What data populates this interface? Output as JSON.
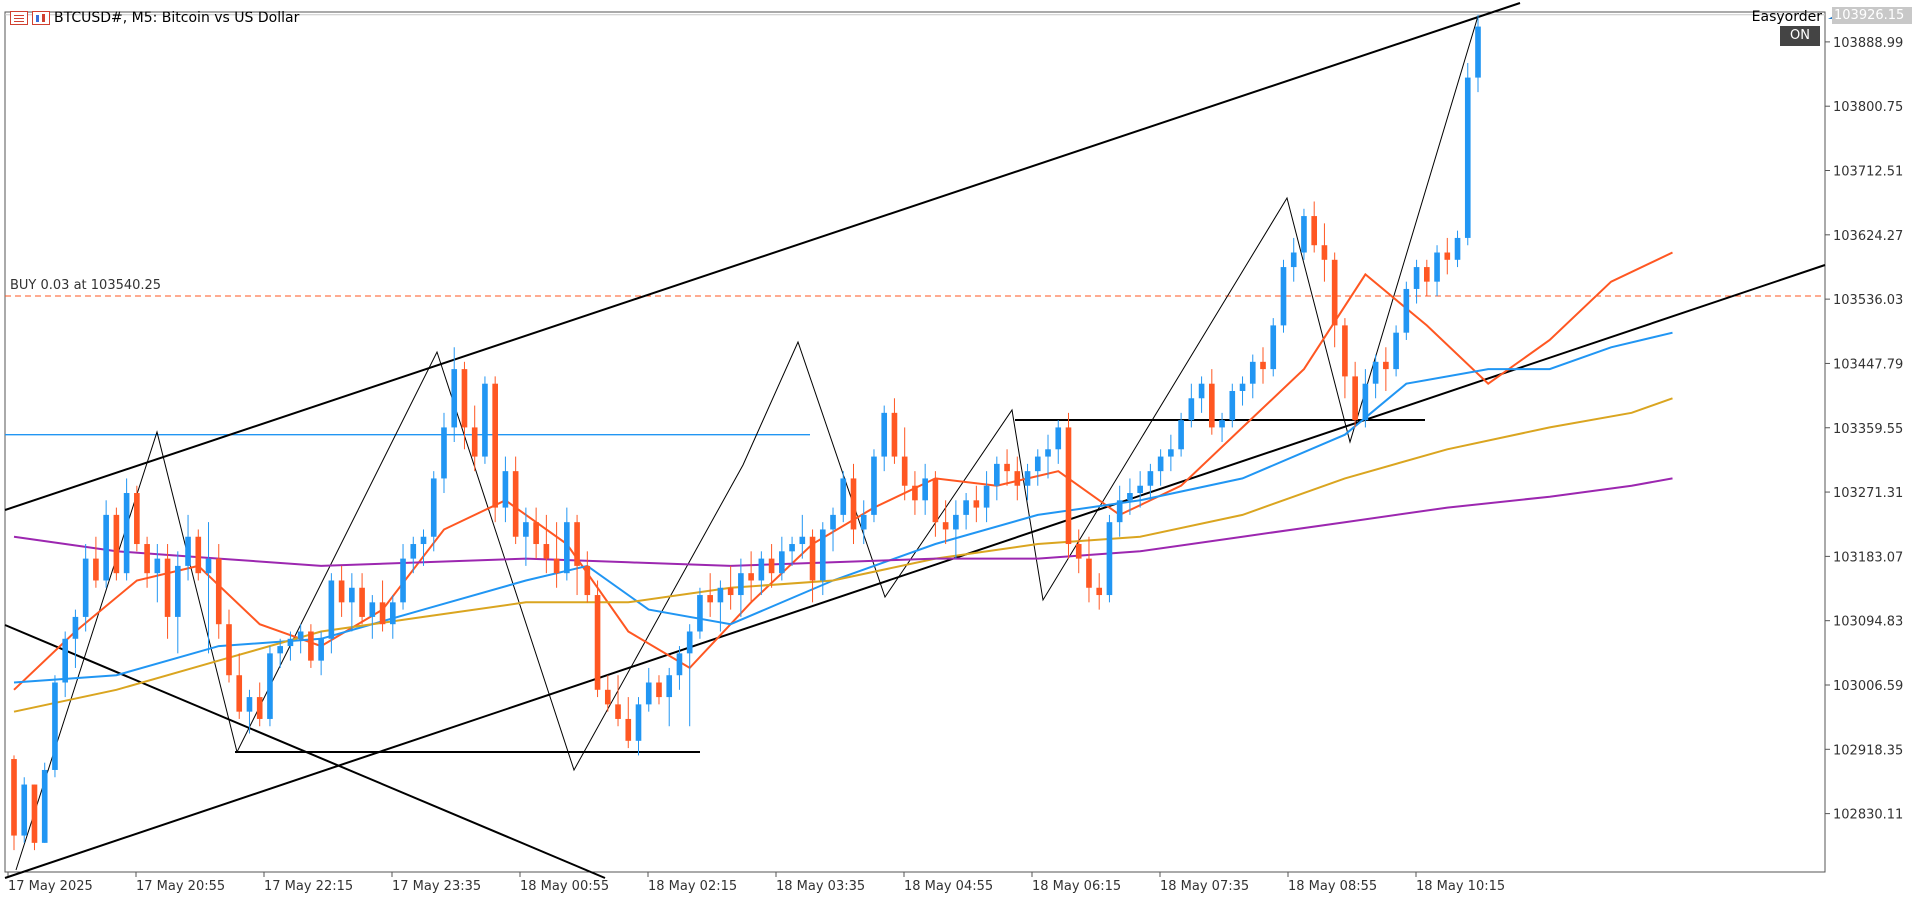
{
  "window": {
    "symbol_title": "BTCUSD#, M5:  Bitcoin vs US Dollar",
    "expert_name": "Easyorder",
    "on_label": "ON",
    "menu_icon": "menu-icon",
    "chart_icon": "chart-icon",
    "expert_icon": "graduation-cap-icon"
  },
  "order_label": "BUY 0.03 at 103540.25",
  "current_price": "103926.15",
  "colors": {
    "bull": "#2196f3",
    "bear": "#ff5722",
    "ma_fast": "#ff5722",
    "ma_mid": "#2196f3",
    "ma_slow": "#daa520",
    "ma_long": "#9c27b0",
    "hline": "#2196f3",
    "order_line": "#ff5722",
    "price_tag": "#c8c8c8"
  },
  "chart_data": {
    "type": "candlestick",
    "symbol": "BTCUSD#",
    "timeframe": "M5",
    "ylim": [
      102750,
      103930
    ],
    "y_ticks": [
      "103888.99",
      "103800.75",
      "103712.51",
      "103624.27",
      "103536.03",
      "103447.79",
      "103359.55",
      "103271.31",
      "103183.07",
      "103094.83",
      "103006.59",
      "102918.35",
      "102830.11"
    ],
    "x_ticks": [
      "17 May 2025",
      "17 May 20:55",
      "17 May 22:15",
      "17 May 23:35",
      "18 May 00:55",
      "18 May 02:15",
      "18 May 03:35",
      "18 May 04:55",
      "18 May 06:15",
      "18 May 07:35",
      "18 May 08:55",
      "18 May 10:15"
    ],
    "candles": [
      [
        102905,
        102910,
        102780,
        102800
      ],
      [
        102800,
        102880,
        102790,
        102870
      ],
      [
        102870,
        102870,
        102780,
        102790
      ],
      [
        102790,
        102900,
        102790,
        102890
      ],
      [
        102890,
        103020,
        102880,
        103010
      ],
      [
        103010,
        103080,
        102990,
        103070
      ],
      [
        103070,
        103110,
        103030,
        103100
      ],
      [
        103100,
        103200,
        103080,
        103180
      ],
      [
        103180,
        103210,
        103140,
        103150
      ],
      [
        103150,
        103260,
        103140,
        103240
      ],
      [
        103240,
        103250,
        103150,
        103160
      ],
      [
        103160,
        103290,
        103150,
        103270
      ],
      [
        103270,
        103280,
        103190,
        103200
      ],
      [
        103200,
        103210,
        103140,
        103160
      ],
      [
        103160,
        103200,
        103120,
        103180
      ],
      [
        103180,
        103200,
        103070,
        103100
      ],
      [
        103100,
        103190,
        103050,
        103170
      ],
      [
        103170,
        103240,
        103150,
        103210
      ],
      [
        103210,
        103220,
        103150,
        103160
      ],
      [
        103160,
        103230,
        103050,
        103180
      ],
      [
        103180,
        103200,
        103070,
        103090
      ],
      [
        103090,
        103110,
        103010,
        103020
      ],
      [
        103020,
        103050,
        102960,
        102970
      ],
      [
        102970,
        103000,
        102940,
        102990
      ],
      [
        102990,
        103010,
        102950,
        102960
      ],
      [
        102960,
        103060,
        102950,
        103050
      ],
      [
        103050,
        103070,
        103030,
        103060
      ],
      [
        103060,
        103080,
        103040,
        103070
      ],
      [
        103070,
        103090,
        103050,
        103080
      ],
      [
        103080,
        103090,
        103030,
        103040
      ],
      [
        103040,
        103080,
        103020,
        103070
      ],
      [
        103070,
        103160,
        103050,
        103150
      ],
      [
        103150,
        103170,
        103100,
        103120
      ],
      [
        103120,
        103160,
        103080,
        103140
      ],
      [
        103140,
        103160,
        103090,
        103100
      ],
      [
        103100,
        103130,
        103070,
        103120
      ],
      [
        103120,
        103150,
        103080,
        103090
      ],
      [
        103090,
        103130,
        103070,
        103120
      ],
      [
        103120,
        103200,
        103110,
        103180
      ],
      [
        103180,
        103210,
        103160,
        103200
      ],
      [
        103200,
        103220,
        103170,
        103210
      ],
      [
        103210,
        103300,
        103190,
        103290
      ],
      [
        103290,
        103380,
        103270,
        103360
      ],
      [
        103360,
        103470,
        103340,
        103440
      ],
      [
        103440,
        103450,
        103330,
        103360
      ],
      [
        103360,
        103390,
        103300,
        103320
      ],
      [
        103320,
        103430,
        103310,
        103420
      ],
      [
        103420,
        103430,
        103230,
        103250
      ],
      [
        103250,
        103320,
        103230,
        103300
      ],
      [
        103300,
        103320,
        103200,
        103210
      ],
      [
        103210,
        103250,
        103170,
        103230
      ],
      [
        103230,
        103250,
        103180,
        103200
      ],
      [
        103200,
        103240,
        103160,
        103180
      ],
      [
        103180,
        103230,
        103140,
        103160
      ],
      [
        103160,
        103250,
        103150,
        103230
      ],
      [
        103230,
        103240,
        103130,
        103170
      ],
      [
        103170,
        103190,
        103120,
        103130
      ],
      [
        103130,
        103150,
        102990,
        103000
      ],
      [
        103000,
        103020,
        102970,
        102980
      ],
      [
        102980,
        103020,
        102950,
        102960
      ],
      [
        102960,
        102990,
        102920,
        102930
      ],
      [
        102930,
        102990,
        102910,
        102980
      ],
      [
        102980,
        103030,
        102970,
        103010
      ],
      [
        103010,
        103020,
        102980,
        102990
      ],
      [
        102990,
        103030,
        102950,
        103020
      ],
      [
        103020,
        103060,
        103000,
        103050
      ],
      [
        103050,
        103090,
        102950,
        103080
      ],
      [
        103080,
        103140,
        103070,
        103130
      ],
      [
        103130,
        103160,
        103100,
        103120
      ],
      [
        103120,
        103150,
        103080,
        103140
      ],
      [
        103140,
        103170,
        103110,
        103130
      ],
      [
        103130,
        103180,
        103100,
        103160
      ],
      [
        103160,
        103190,
        103120,
        103150
      ],
      [
        103150,
        103190,
        103130,
        103180
      ],
      [
        103180,
        103200,
        103140,
        103160
      ],
      [
        103160,
        103210,
        103150,
        103190
      ],
      [
        103190,
        103210,
        103170,
        103200
      ],
      [
        103200,
        103240,
        103180,
        103210
      ],
      [
        103210,
        103220,
        103120,
        103150
      ],
      [
        103150,
        103230,
        103130,
        103220
      ],
      [
        103220,
        103250,
        103190,
        103240
      ],
      [
        103240,
        103300,
        103230,
        103290
      ],
      [
        103290,
        103310,
        103200,
        103220
      ],
      [
        103220,
        103260,
        103200,
        103240
      ],
      [
        103240,
        103330,
        103230,
        103320
      ],
      [
        103320,
        103390,
        103300,
        103380
      ],
      [
        103380,
        103400,
        103310,
        103320
      ],
      [
        103320,
        103360,
        103260,
        103280
      ],
      [
        103280,
        103300,
        103240,
        103260
      ],
      [
        103260,
        103310,
        103240,
        103290
      ],
      [
        103290,
        103300,
        103210,
        103230
      ],
      [
        103230,
        103260,
        103200,
        103220
      ],
      [
        103220,
        103260,
        103180,
        103240
      ],
      [
        103240,
        103270,
        103220,
        103260
      ],
      [
        103260,
        103280,
        103230,
        103250
      ],
      [
        103250,
        103300,
        103230,
        103280
      ],
      [
        103280,
        103320,
        103260,
        103310
      ],
      [
        103310,
        103330,
        103280,
        103300
      ],
      [
        103300,
        103320,
        103260,
        103280
      ],
      [
        103280,
        103310,
        103260,
        103300
      ],
      [
        103300,
        103330,
        103280,
        103320
      ],
      [
        103320,
        103350,
        103290,
        103330
      ],
      [
        103330,
        103370,
        103310,
        103360
      ],
      [
        103360,
        103380,
        103180,
        103200
      ],
      [
        103200,
        103220,
        103160,
        103180
      ],
      [
        103180,
        103210,
        103120,
        103140
      ],
      [
        103140,
        103160,
        103110,
        103130
      ],
      [
        103130,
        103240,
        103120,
        103230
      ],
      [
        103230,
        103280,
        103210,
        103260
      ],
      [
        103260,
        103290,
        103240,
        103270
      ],
      [
        103270,
        103300,
        103250,
        103280
      ],
      [
        103280,
        103310,
        103260,
        103300
      ],
      [
        103300,
        103330,
        103280,
        103320
      ],
      [
        103320,
        103350,
        103300,
        103330
      ],
      [
        103330,
        103380,
        103320,
        103370
      ],
      [
        103370,
        103420,
        103360,
        103400
      ],
      [
        103400,
        103430,
        103380,
        103420
      ],
      [
        103420,
        103440,
        103350,
        103360
      ],
      [
        103360,
        103380,
        103340,
        103370
      ],
      [
        103370,
        103420,
        103360,
        103410
      ],
      [
        103410,
        103430,
        103390,
        103420
      ],
      [
        103420,
        103460,
        103400,
        103450
      ],
      [
        103450,
        103470,
        103420,
        103440
      ],
      [
        103440,
        103510,
        103430,
        103500
      ],
      [
        103500,
        103590,
        103490,
        103580
      ],
      [
        103580,
        103620,
        103560,
        103600
      ],
      [
        103600,
        103660,
        103590,
        103650
      ],
      [
        103650,
        103670,
        103600,
        103610
      ],
      [
        103610,
        103640,
        103560,
        103590
      ],
      [
        103590,
        103600,
        103470,
        103500
      ],
      [
        103500,
        103510,
        103400,
        103430
      ],
      [
        103430,
        103450,
        103360,
        103370
      ],
      [
        103370,
        103440,
        103360,
        103420
      ],
      [
        103420,
        103460,
        103400,
        103450
      ],
      [
        103450,
        103470,
        103410,
        103440
      ],
      [
        103440,
        103500,
        103430,
        103490
      ],
      [
        103490,
        103560,
        103480,
        103550
      ],
      [
        103550,
        103590,
        103530,
        103580
      ],
      [
        103580,
        103590,
        103540,
        103560
      ],
      [
        103560,
        103610,
        103540,
        103600
      ],
      [
        103600,
        103620,
        103570,
        103590
      ],
      [
        103590,
        103630,
        103580,
        103620
      ],
      [
        103620,
        103860,
        103610,
        103840
      ],
      [
        103840,
        103926,
        103820,
        103910
      ]
    ],
    "moving_averages": [
      {
        "name": "fast",
        "color": "#ff5722",
        "points": [
          [
            0,
            103000
          ],
          [
            6,
            103080
          ],
          [
            12,
            103150
          ],
          [
            18,
            103170
          ],
          [
            24,
            103090
          ],
          [
            30,
            103060
          ],
          [
            36,
            103110
          ],
          [
            42,
            103220
          ],
          [
            48,
            103260
          ],
          [
            54,
            103200
          ],
          [
            60,
            103080
          ],
          [
            66,
            103030
          ],
          [
            72,
            103120
          ],
          [
            78,
            103200
          ],
          [
            84,
            103250
          ],
          [
            90,
            103290
          ],
          [
            96,
            103280
          ],
          [
            102,
            103300
          ],
          [
            108,
            103240
          ],
          [
            114,
            103280
          ],
          [
            120,
            103360
          ],
          [
            126,
            103440
          ],
          [
            132,
            103570
          ],
          [
            138,
            103500
          ],
          [
            144,
            103420
          ],
          [
            150,
            103480
          ],
          [
            156,
            103560
          ],
          [
            162,
            103600
          ]
        ]
      },
      {
        "name": "mid",
        "color": "#2196f3",
        "points": [
          [
            0,
            103010
          ],
          [
            10,
            103020
          ],
          [
            20,
            103060
          ],
          [
            30,
            103070
          ],
          [
            40,
            103110
          ],
          [
            50,
            103150
          ],
          [
            56,
            103170
          ],
          [
            62,
            103110
          ],
          [
            70,
            103090
          ],
          [
            80,
            103150
          ],
          [
            90,
            103200
          ],
          [
            100,
            103240
          ],
          [
            110,
            103260
          ],
          [
            120,
            103290
          ],
          [
            130,
            103350
          ],
          [
            136,
            103420
          ],
          [
            144,
            103440
          ],
          [
            150,
            103440
          ],
          [
            156,
            103470
          ],
          [
            162,
            103490
          ]
        ]
      },
      {
        "name": "slow",
        "color": "#daa520",
        "points": [
          [
            0,
            102970
          ],
          [
            10,
            103000
          ],
          [
            20,
            103040
          ],
          [
            30,
            103080
          ],
          [
            40,
            103100
          ],
          [
            50,
            103120
          ],
          [
            60,
            103120
          ],
          [
            70,
            103140
          ],
          [
            80,
            103150
          ],
          [
            90,
            103180
          ],
          [
            100,
            103200
          ],
          [
            110,
            103210
          ],
          [
            120,
            103240
          ],
          [
            130,
            103290
          ],
          [
            140,
            103330
          ],
          [
            150,
            103360
          ],
          [
            158,
            103380
          ],
          [
            162,
            103400
          ]
        ]
      },
      {
        "name": "long",
        "color": "#9c27b0",
        "points": [
          [
            0,
            103210
          ],
          [
            10,
            103190
          ],
          [
            20,
            103180
          ],
          [
            30,
            103170
          ],
          [
            40,
            103175
          ],
          [
            50,
            103180
          ],
          [
            60,
            103175
          ],
          [
            70,
            103170
          ],
          [
            80,
            103175
          ],
          [
            90,
            103180
          ],
          [
            100,
            103180
          ],
          [
            110,
            103190
          ],
          [
            120,
            103210
          ],
          [
            130,
            103230
          ],
          [
            140,
            103250
          ],
          [
            150,
            103265
          ],
          [
            158,
            103280
          ],
          [
            162,
            103290
          ]
        ]
      }
    ],
    "levels": {
      "hline_price": 103350,
      "order_price": 103540.25
    }
  }
}
